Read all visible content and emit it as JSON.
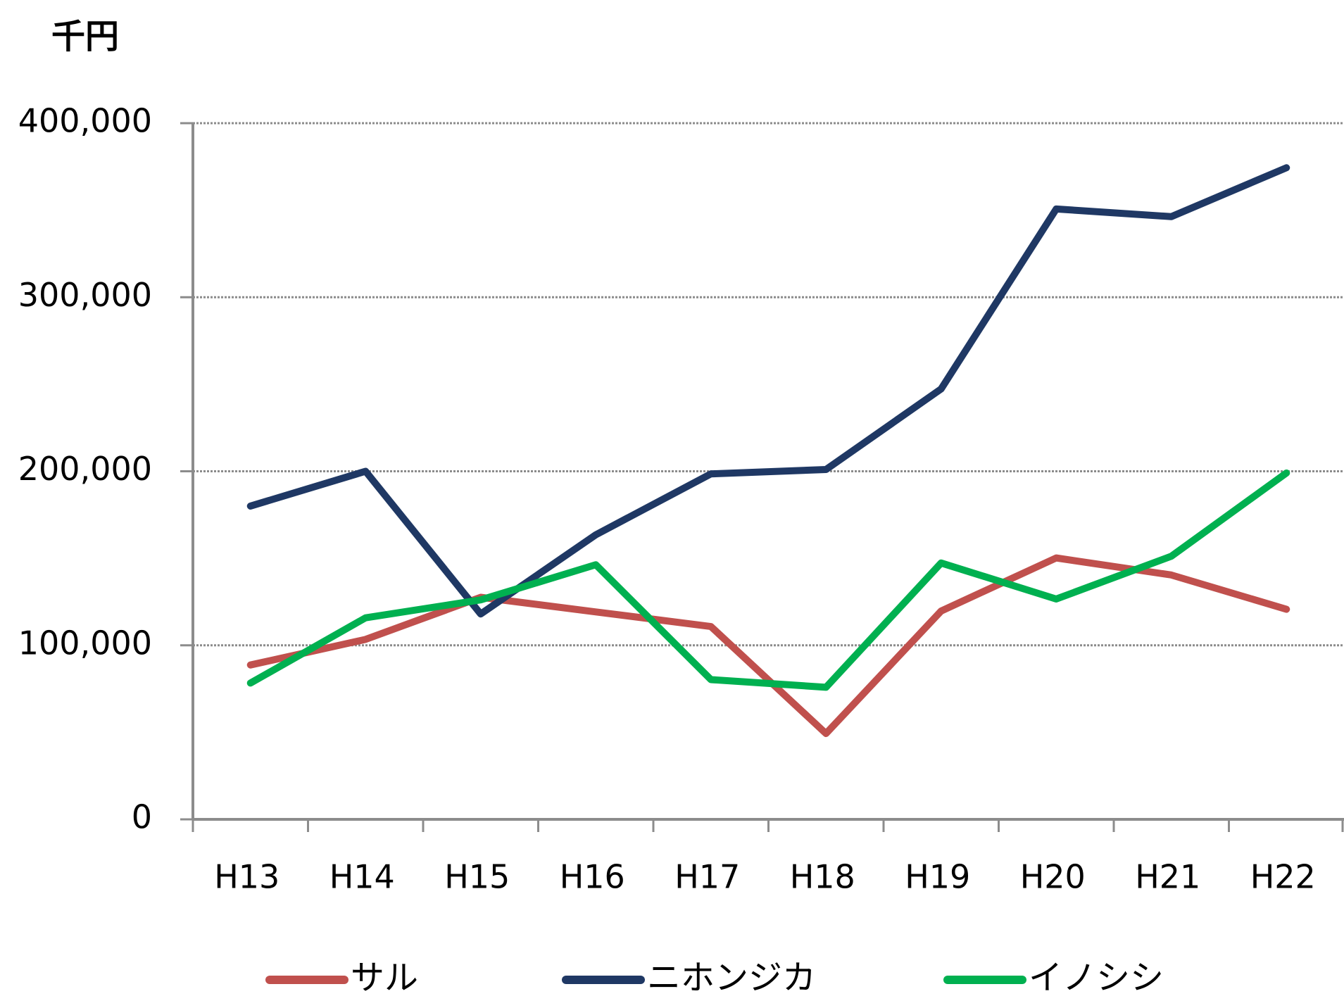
{
  "chart_data": {
    "type": "line",
    "y_axis_label": "千円",
    "categories": [
      "H13",
      "H14",
      "H15",
      "H16",
      "H17",
      "H18",
      "H19",
      "H20",
      "H21",
      "H22"
    ],
    "series": [
      {
        "name": "サル",
        "color": "#c0504d",
        "values": [
          88700,
          103400,
          127600,
          119200,
          110800,
          49300,
          119700,
          150200,
          140400,
          120700
        ]
      },
      {
        "name": "ニホンジカ",
        "color": "#1f3864",
        "values": [
          180000,
          200000,
          118000,
          163500,
          198500,
          201000,
          247300,
          350700,
          346300,
          374400
        ]
      },
      {
        "name": "イノシシ",
        "color": "#00b050",
        "values": [
          78300,
          115800,
          126100,
          146300,
          80300,
          75900,
          147300,
          126600,
          151200,
          199000
        ]
      }
    ],
    "ylim": [
      0,
      400000
    ],
    "yticks": [
      0,
      {
        "value": 100000,
        "label": "100,000"
      },
      {
        "value": 200000,
        "label": "200,000"
      },
      {
        "value": 300000,
        "label": "300,000"
      },
      {
        "value": 400000,
        "label": "400,000"
      }
    ],
    "grid": true,
    "legend": "bottom"
  }
}
